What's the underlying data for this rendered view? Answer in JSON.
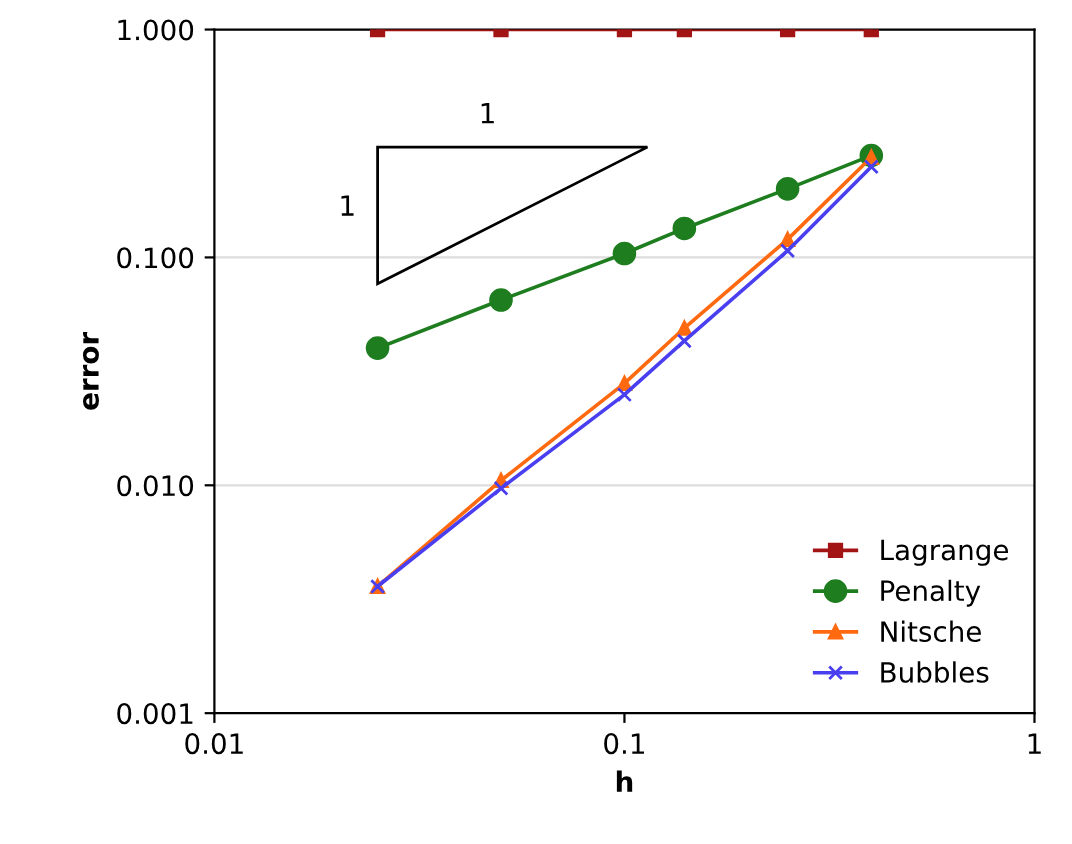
{
  "chart_data": {
    "type": "line",
    "xlabel": "h",
    "ylabel": "error",
    "log": "xy",
    "x": [
      0.025,
      0.05,
      0.1,
      0.14,
      0.25,
      0.4
    ],
    "series": [
      {
        "name": "Lagrange",
        "color": "#a31515",
        "marker": "square",
        "values": [
          1.0,
          1.0,
          1.0,
          1.0,
          1.0,
          1.0
        ]
      },
      {
        "name": "Penalty",
        "color": "#1e7d1e",
        "marker": "circle",
        "values": [
          0.04,
          0.065,
          0.104,
          0.134,
          0.2,
          0.28
        ]
      },
      {
        "name": "Nitsche",
        "color": "#ff6a10",
        "marker": "triangle",
        "values": [
          0.0036,
          0.0105,
          0.028,
          0.049,
          0.12,
          0.275
        ]
      },
      {
        "name": "Bubbles",
        "color": "#4a3ff0",
        "marker": "cross",
        "values": [
          0.0036,
          0.0097,
          0.025,
          0.043,
          0.107,
          0.25
        ]
      }
    ],
    "xlim": [
      0.01,
      1
    ],
    "ylim": [
      0.001,
      1
    ],
    "xticks": [
      0.01,
      0.1,
      1
    ],
    "yticks": [
      {
        "value": 0.001,
        "label": "0.001"
      },
      {
        "value": 0.01,
        "label": "0.010"
      },
      {
        "value": 0.1,
        "label": "0.100"
      },
      {
        "value": 1,
        "label": "1.000"
      }
    ],
    "grid": "y",
    "legend": "bottom right",
    "line_style": "solid",
    "annotations": [
      "1",
      "1"
    ]
  }
}
